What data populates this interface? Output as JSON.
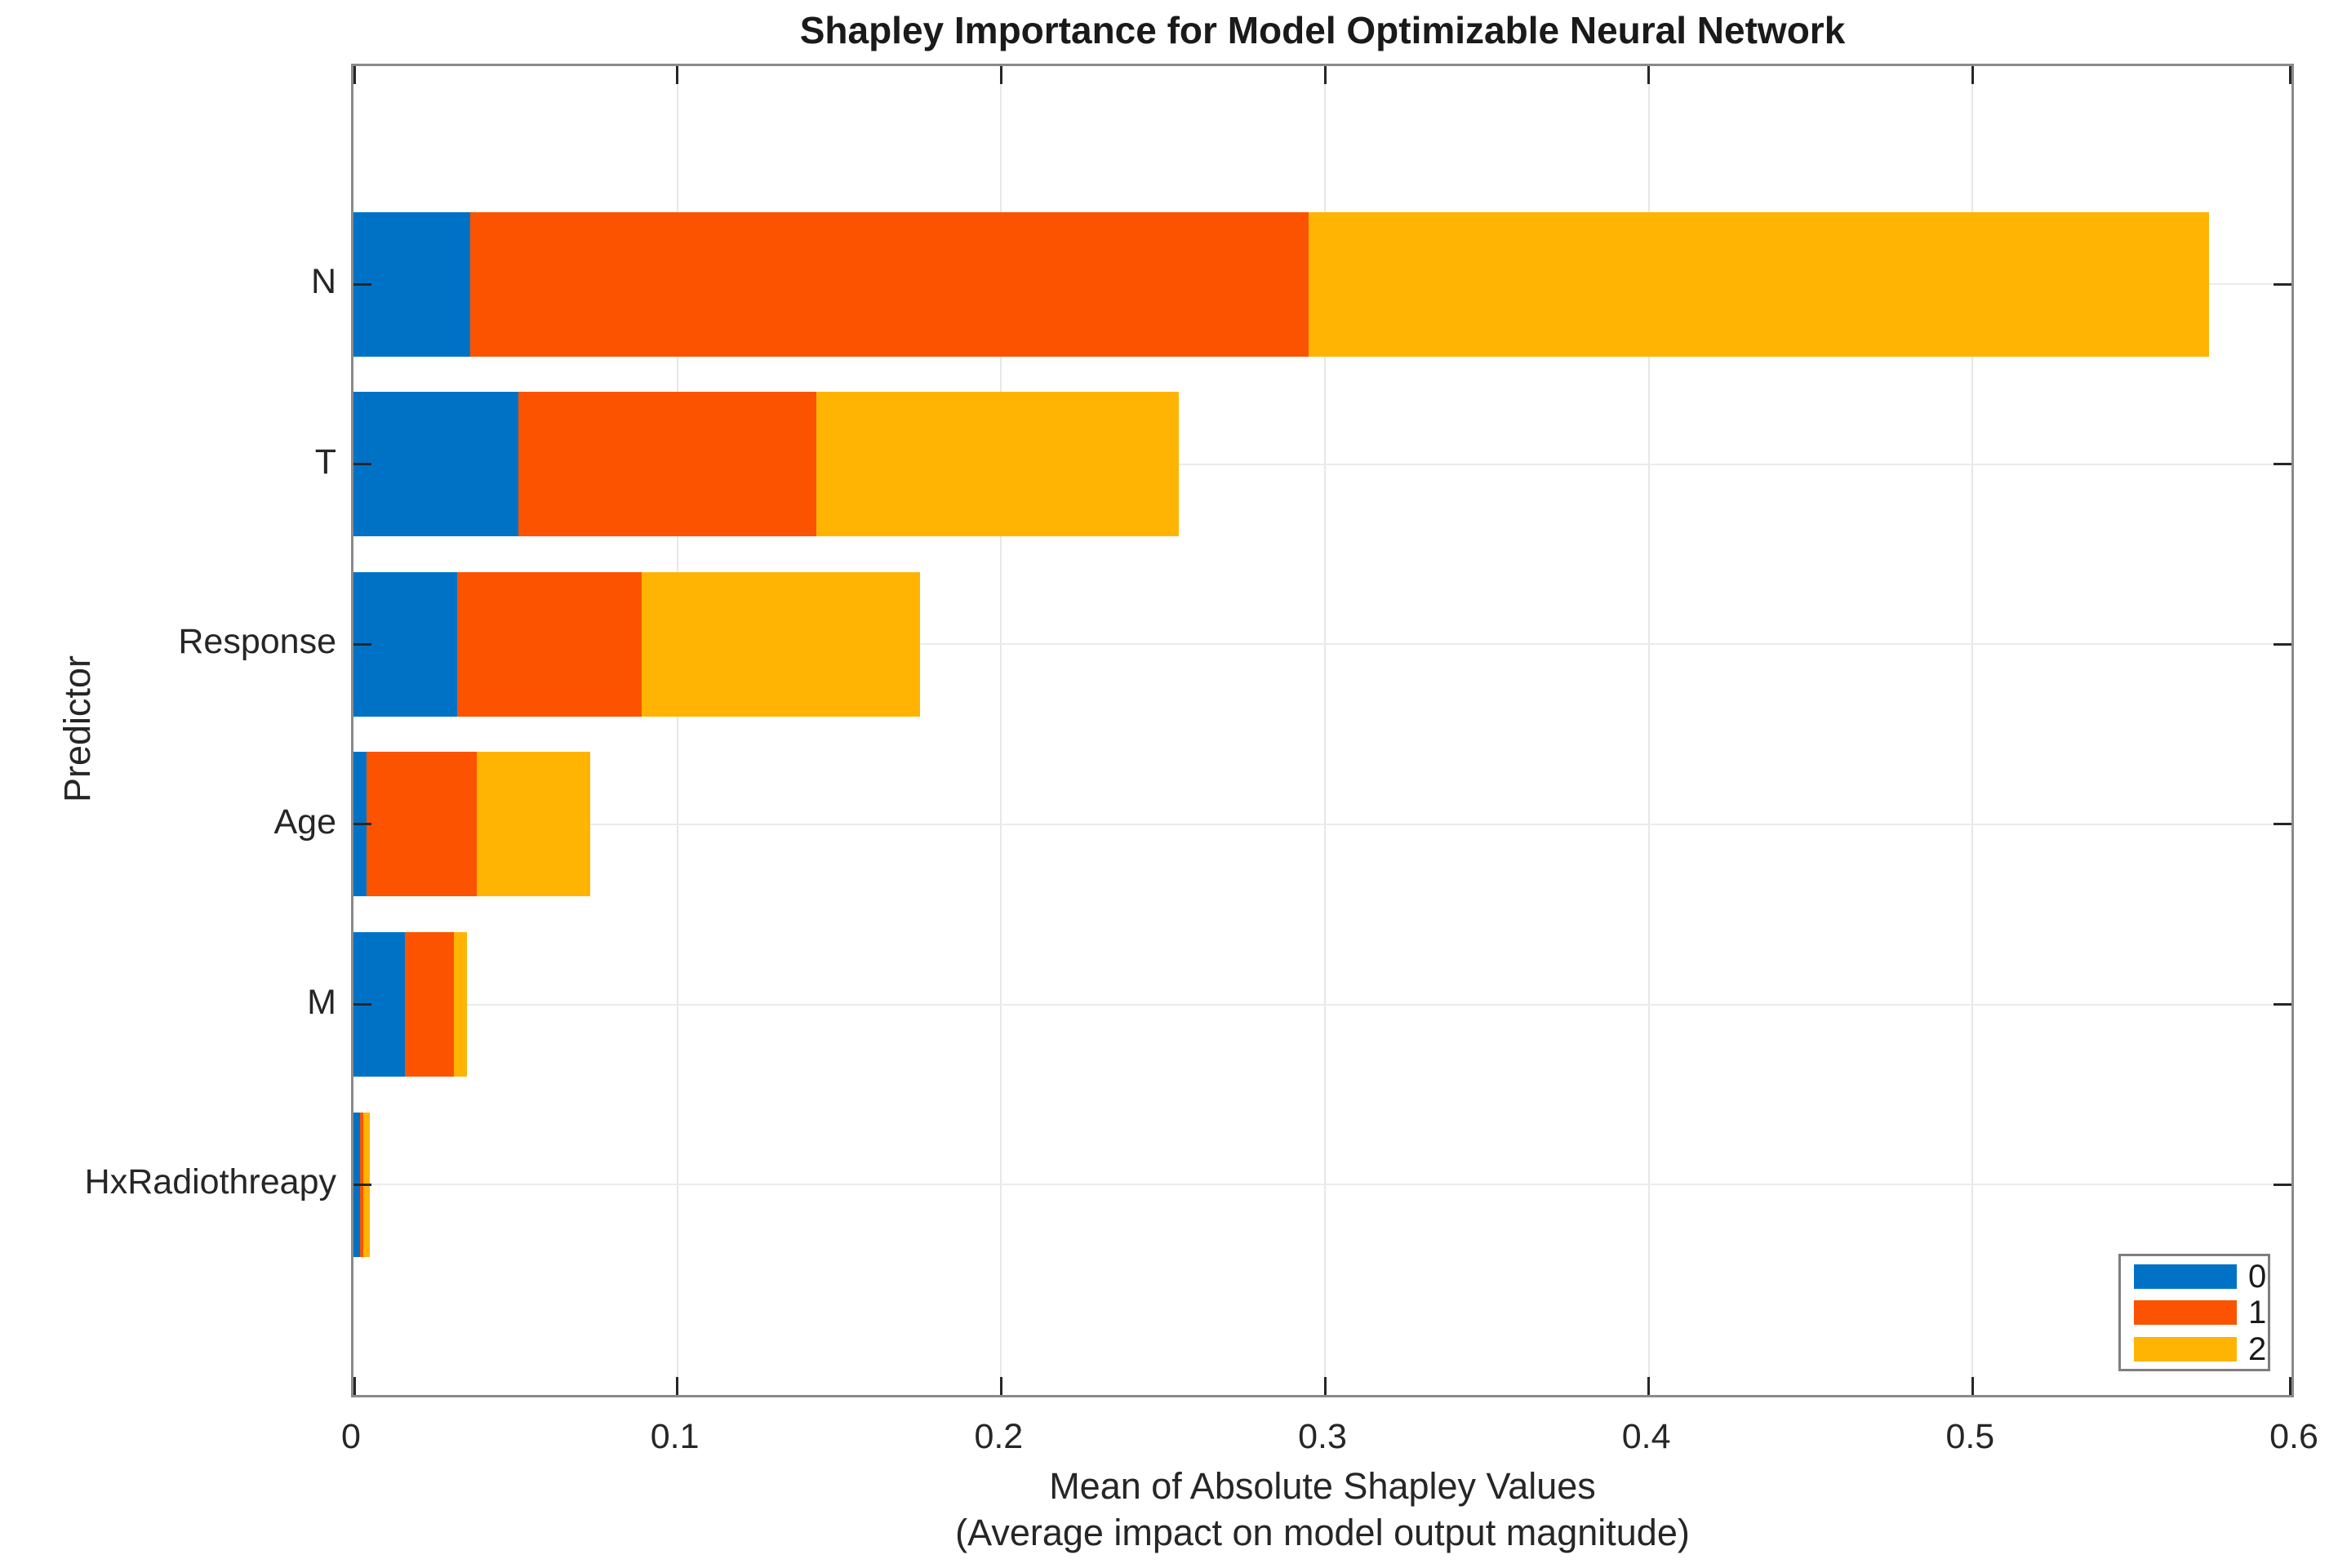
{
  "title": "Shapley Importance for Model Optimizable Neural Network",
  "axes": {
    "ylabel": "Predictor",
    "xlabel_line1": "Mean of Absolute Shapley Values",
    "xlabel_line2": "(Average impact on model output magnitude)"
  },
  "legend": {
    "entries": [
      {
        "label": "0",
        "color": "#0072C6"
      },
      {
        "label": "1",
        "color": "#FB5300"
      },
      {
        "label": "2",
        "color": "#FFB404"
      }
    ]
  },
  "colors": {
    "series_blue": "#0072C6",
    "series_orange": "#FB5300",
    "series_yellow": "#FFB404",
    "spine": "#8a8a8a",
    "grid": "#e7e7e7",
    "tick": "#262626",
    "text": "#262626"
  },
  "chart_data": {
    "type": "bar",
    "orientation": "horizontal",
    "stacked": true,
    "title": "Shapley Importance for Model Optimizable Neural Network",
    "xlabel": "Mean of Absolute Shapley Values (Average impact on model output magnitude)",
    "ylabel": "Predictor",
    "categories": [
      "N",
      "T",
      "Response",
      "Age",
      "M",
      "HxRadiothreapy"
    ],
    "series": [
      {
        "name": "0",
        "color": "#0072C6",
        "values": [
          0.036,
          0.051,
          0.032,
          0.004,
          0.016,
          0.002
        ]
      },
      {
        "name": "1",
        "color": "#FB5300",
        "values": [
          0.259,
          0.092,
          0.057,
          0.034,
          0.015,
          0.001
        ]
      },
      {
        "name": "2",
        "color": "#FFB404",
        "values": [
          0.278,
          0.112,
          0.086,
          0.035,
          0.004,
          0.002
        ]
      }
    ],
    "totals": [
      0.573,
      0.255,
      0.175,
      0.073,
      0.035,
      0.005
    ],
    "xlim": [
      0,
      0.6
    ],
    "xticks": [
      0,
      0.1,
      0.2,
      0.3,
      0.4,
      0.5,
      0.6
    ],
    "xtick_labels": [
      "0",
      "0.1",
      "0.2",
      "0.3",
      "0.4",
      "0.5",
      "0.6"
    ],
    "grid": true,
    "legend_position": "lower right",
    "legend_labels": [
      "0",
      "1",
      "2"
    ]
  }
}
